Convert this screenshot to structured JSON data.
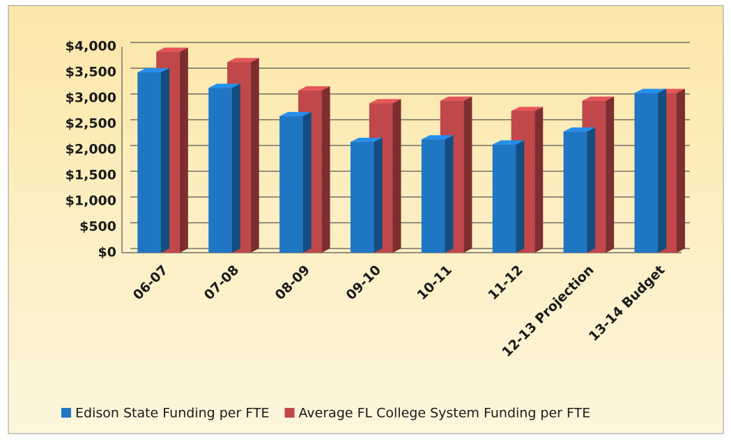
{
  "chart_data": {
    "type": "bar",
    "categories": [
      "06-07",
      "07-08",
      "08-09",
      "09-10",
      "10-11",
      "11-12",
      "12-13 Projection",
      "13-14 Budget"
    ],
    "series": [
      {
        "name": "Edison State Funding per FTE",
        "color": "#1f77c4",
        "values": [
          3500,
          3200,
          2650,
          2150,
          2200,
          2100,
          2350,
          3100
        ]
      },
      {
        "name": "Average FL College System Funding per FTE",
        "color": "#c0474a",
        "values": [
          3900,
          3700,
          3150,
          2900,
          2950,
          2750,
          2950,
          3100
        ]
      }
    ],
    "ylim": [
      0,
      4000
    ],
    "yticks": [
      {
        "value": 0,
        "label": "$0"
      },
      {
        "value": 500,
        "label": "$500"
      },
      {
        "value": 1000,
        "label": "$1,000"
      },
      {
        "value": 1500,
        "label": "$1,500"
      },
      {
        "value": 2000,
        "label": "$2,000"
      },
      {
        "value": 2500,
        "label": "$2,500"
      },
      {
        "value": 3000,
        "label": "$3,000"
      },
      {
        "value": 3500,
        "label": "$3,500"
      },
      {
        "value": 4000,
        "label": "$4,000"
      }
    ],
    "grid": true,
    "legend": "bottom"
  }
}
